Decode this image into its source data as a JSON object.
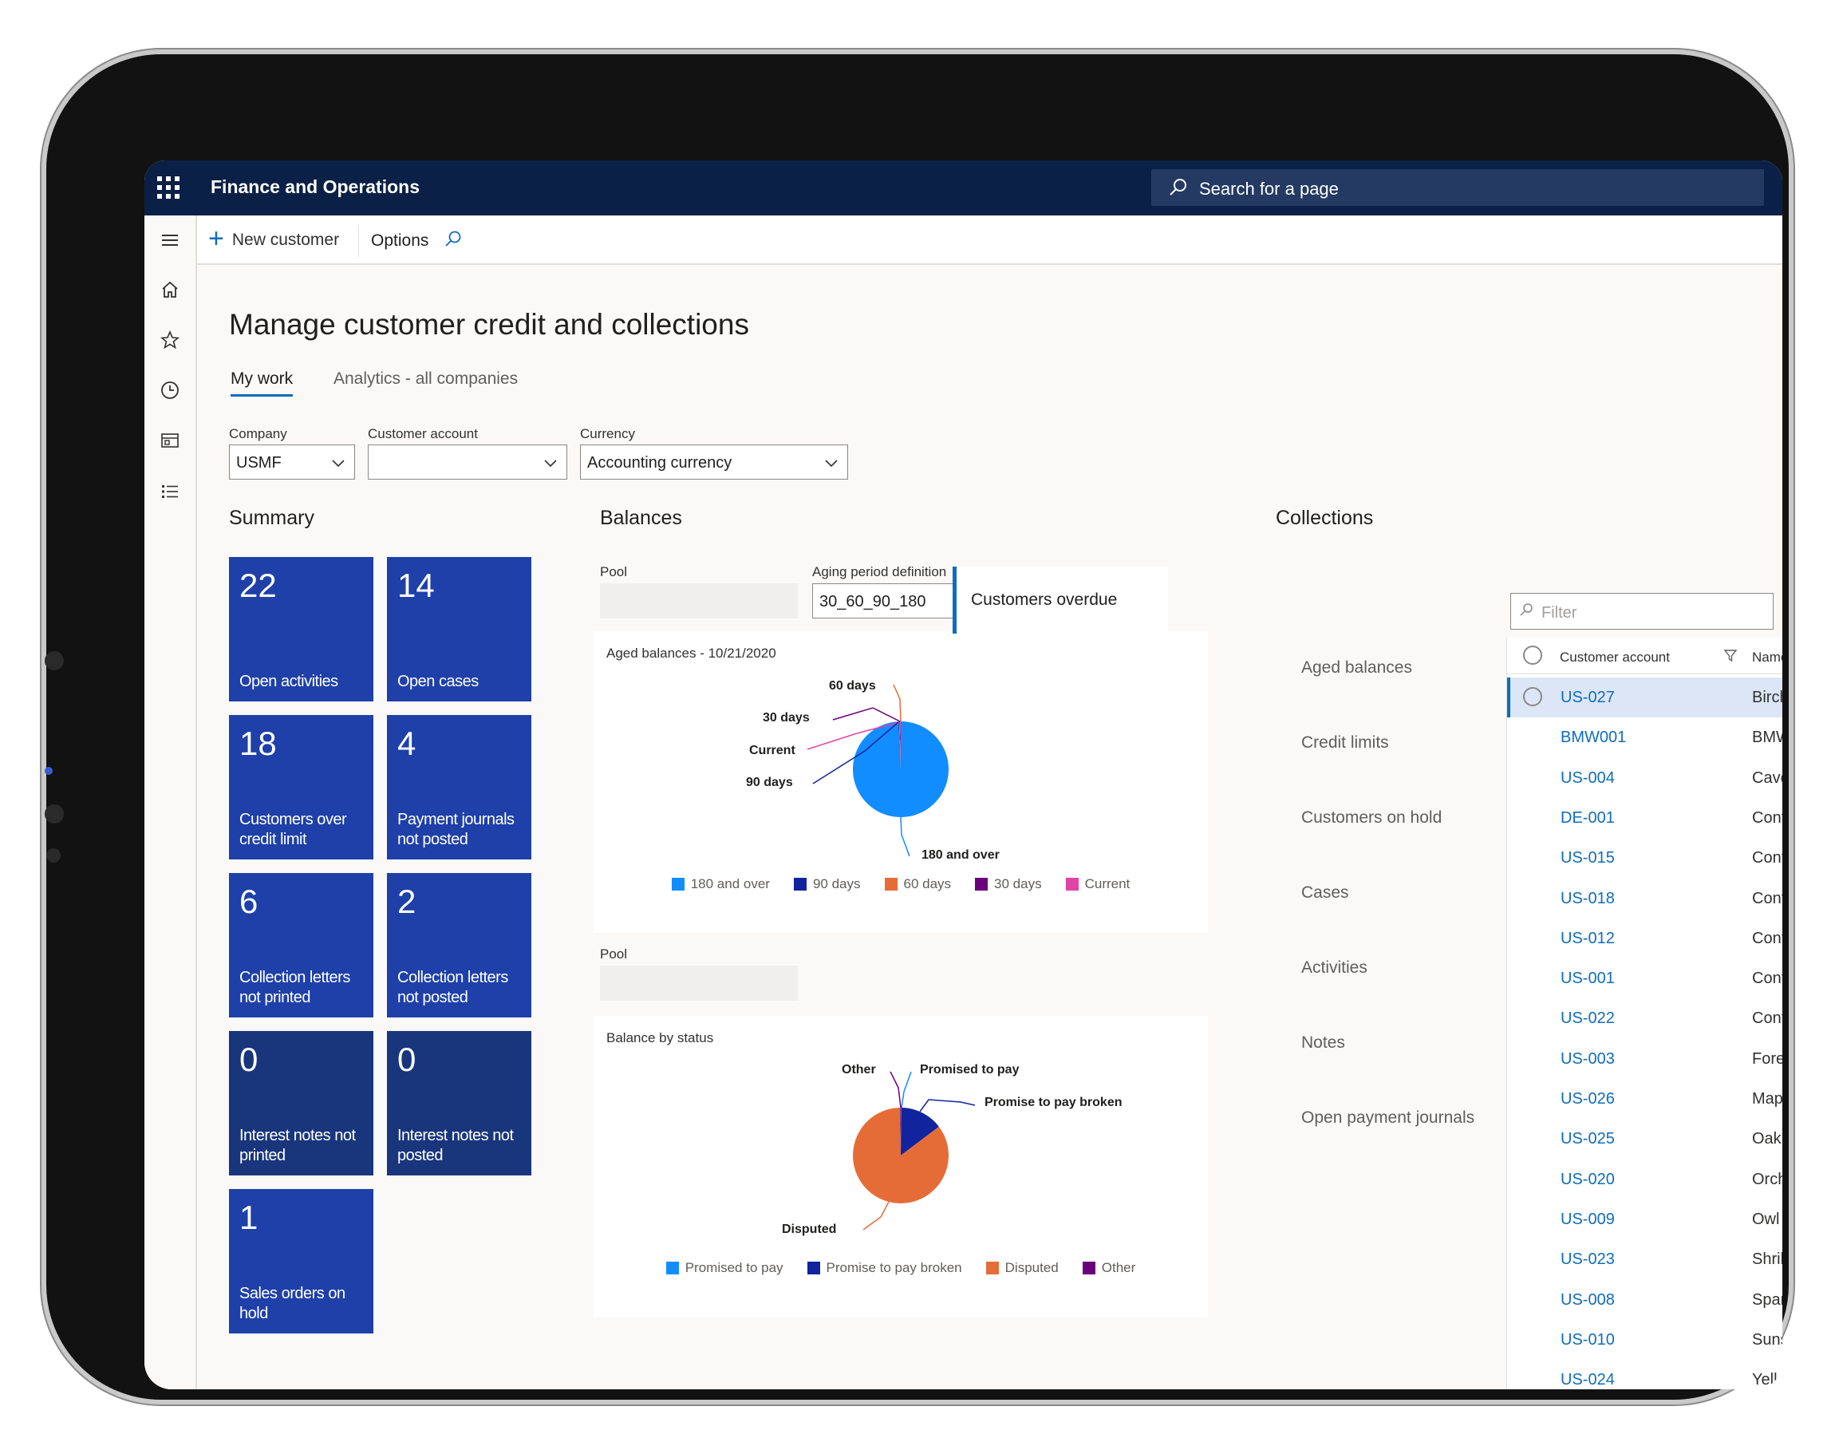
{
  "app": {
    "title": "Finance and Operations",
    "search_placeholder": "Search for a page"
  },
  "action_bar": {
    "new_customer": "New customer",
    "options": "Options"
  },
  "page": {
    "title": "Manage customer credit and collections",
    "tabs": [
      {
        "label": "My work",
        "active": true
      },
      {
        "label": "Analytics - all companies",
        "active": false
      }
    ]
  },
  "filters": {
    "company": {
      "label": "Company",
      "value": "USMF"
    },
    "customer_account": {
      "label": "Customer account",
      "value": ""
    },
    "currency": {
      "label": "Currency",
      "value": "Accounting currency"
    }
  },
  "summary": {
    "title": "Summary",
    "tiles": [
      {
        "count": "22",
        "label": "Open activities"
      },
      {
        "count": "14",
        "label": "Open cases"
      },
      {
        "count": "18",
        "label": "Customers over credit limit"
      },
      {
        "count": "4",
        "label": "Payment journals not posted"
      },
      {
        "count": "6",
        "label": "Collection letters not printed"
      },
      {
        "count": "2",
        "label": "Collection letters not posted"
      },
      {
        "count": "0",
        "label": "Interest notes not printed"
      },
      {
        "count": "0",
        "label": "Interest notes not posted"
      },
      {
        "count": "1",
        "label": "Sales orders on hold"
      }
    ]
  },
  "balances": {
    "title": "Balances",
    "pool_label": "Pool",
    "aging_label": "Aging period definition",
    "aging_value": "30_60_90_180",
    "pool2_label": "Pool"
  },
  "chart_data": [
    {
      "type": "pie",
      "title": "Aged balances - 10/21/2020",
      "categories": [
        "180 and over",
        "90 days",
        "60 days",
        "30 days",
        "Current"
      ],
      "values": [
        99.2,
        0.2,
        0.2,
        0.2,
        0.2
      ],
      "colors": [
        "#118dff",
        "#12239e",
        "#e66c37",
        "#6b007b",
        "#e044a7"
      ],
      "legend": "bottom"
    },
    {
      "type": "pie",
      "title": "Balance by status",
      "categories": [
        "Promised to pay",
        "Promise to pay broken",
        "Disputed",
        "Other"
      ],
      "values": [
        0.2,
        14.5,
        85.1,
        0.2
      ],
      "colors": [
        "#118dff",
        "#12239e",
        "#e66c37",
        "#6b007b"
      ],
      "legend": "bottom"
    }
  ],
  "collections": {
    "title": "Collections",
    "nav": [
      "Customers overdue",
      "Aged balances",
      "Credit limits",
      "Customers on hold",
      "Cases",
      "Activities",
      "Notes",
      "Open payment journals"
    ],
    "filter_placeholder": "Filter",
    "p_cut": "Po",
    "grid": {
      "col_account": "Customer account",
      "col_name": "Name",
      "rows": [
        {
          "account": "US-027",
          "name": "Birch"
        },
        {
          "account": "BMW001",
          "name": "BMW"
        },
        {
          "account": "US-004",
          "name": "Cave"
        },
        {
          "account": "DE-001",
          "name": "Conto"
        },
        {
          "account": "US-015",
          "name": "Conto"
        },
        {
          "account": "US-018",
          "name": "Conto"
        },
        {
          "account": "US-012",
          "name": "Conto"
        },
        {
          "account": "US-001",
          "name": "Conto"
        },
        {
          "account": "US-022",
          "name": "Conto"
        },
        {
          "account": "US-003",
          "name": "Forest"
        },
        {
          "account": "US-026",
          "name": "Maple"
        },
        {
          "account": "US-025",
          "name": "Oak C"
        },
        {
          "account": "US-020",
          "name": "Orchi"
        },
        {
          "account": "US-009",
          "name": "Owl W"
        },
        {
          "account": "US-023",
          "name": "Shrike"
        },
        {
          "account": "US-008",
          "name": "Sparr"
        },
        {
          "account": "US-010",
          "name": "Sunse"
        },
        {
          "account": "US-024",
          "name": "Yellov"
        }
      ]
    }
  }
}
